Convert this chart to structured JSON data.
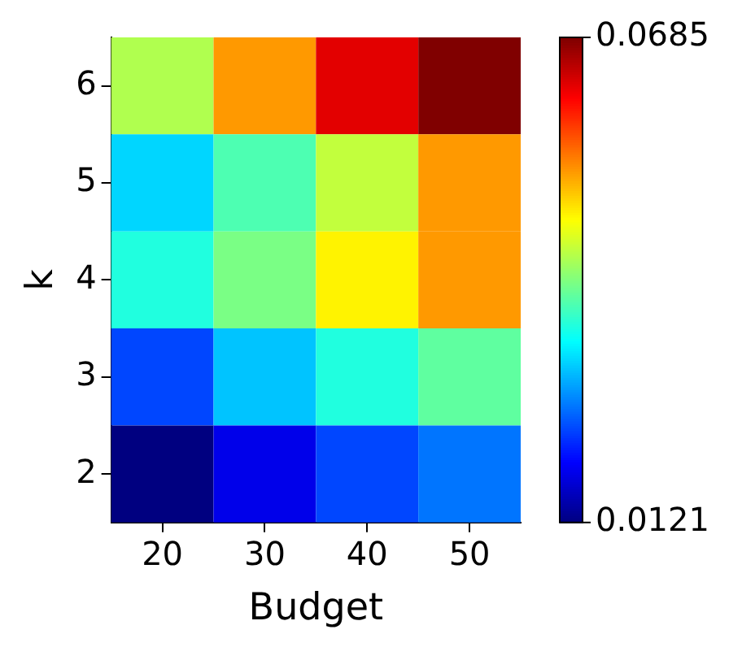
{
  "chart_data": {
    "type": "heatmap",
    "xlabel": "Budget",
    "ylabel": "k",
    "categories": [
      "20",
      "30",
      "40",
      "50"
    ],
    "y_categories": [
      "6",
      "5",
      "4",
      "3",
      "2"
    ],
    "cells": [
      [
        0.043,
        0.053,
        0.063,
        0.0685
      ],
      [
        0.031,
        0.0375,
        0.044,
        0.053
      ],
      [
        0.035,
        0.04,
        0.048,
        0.053
      ],
      [
        0.023,
        0.03,
        0.035,
        0.0385
      ],
      [
        0.0121,
        0.018,
        0.023,
        0.0256
      ]
    ],
    "clim": [
      0.0121,
      0.0685
    ],
    "cticks": [
      0.0121,
      0.0685
    ]
  }
}
